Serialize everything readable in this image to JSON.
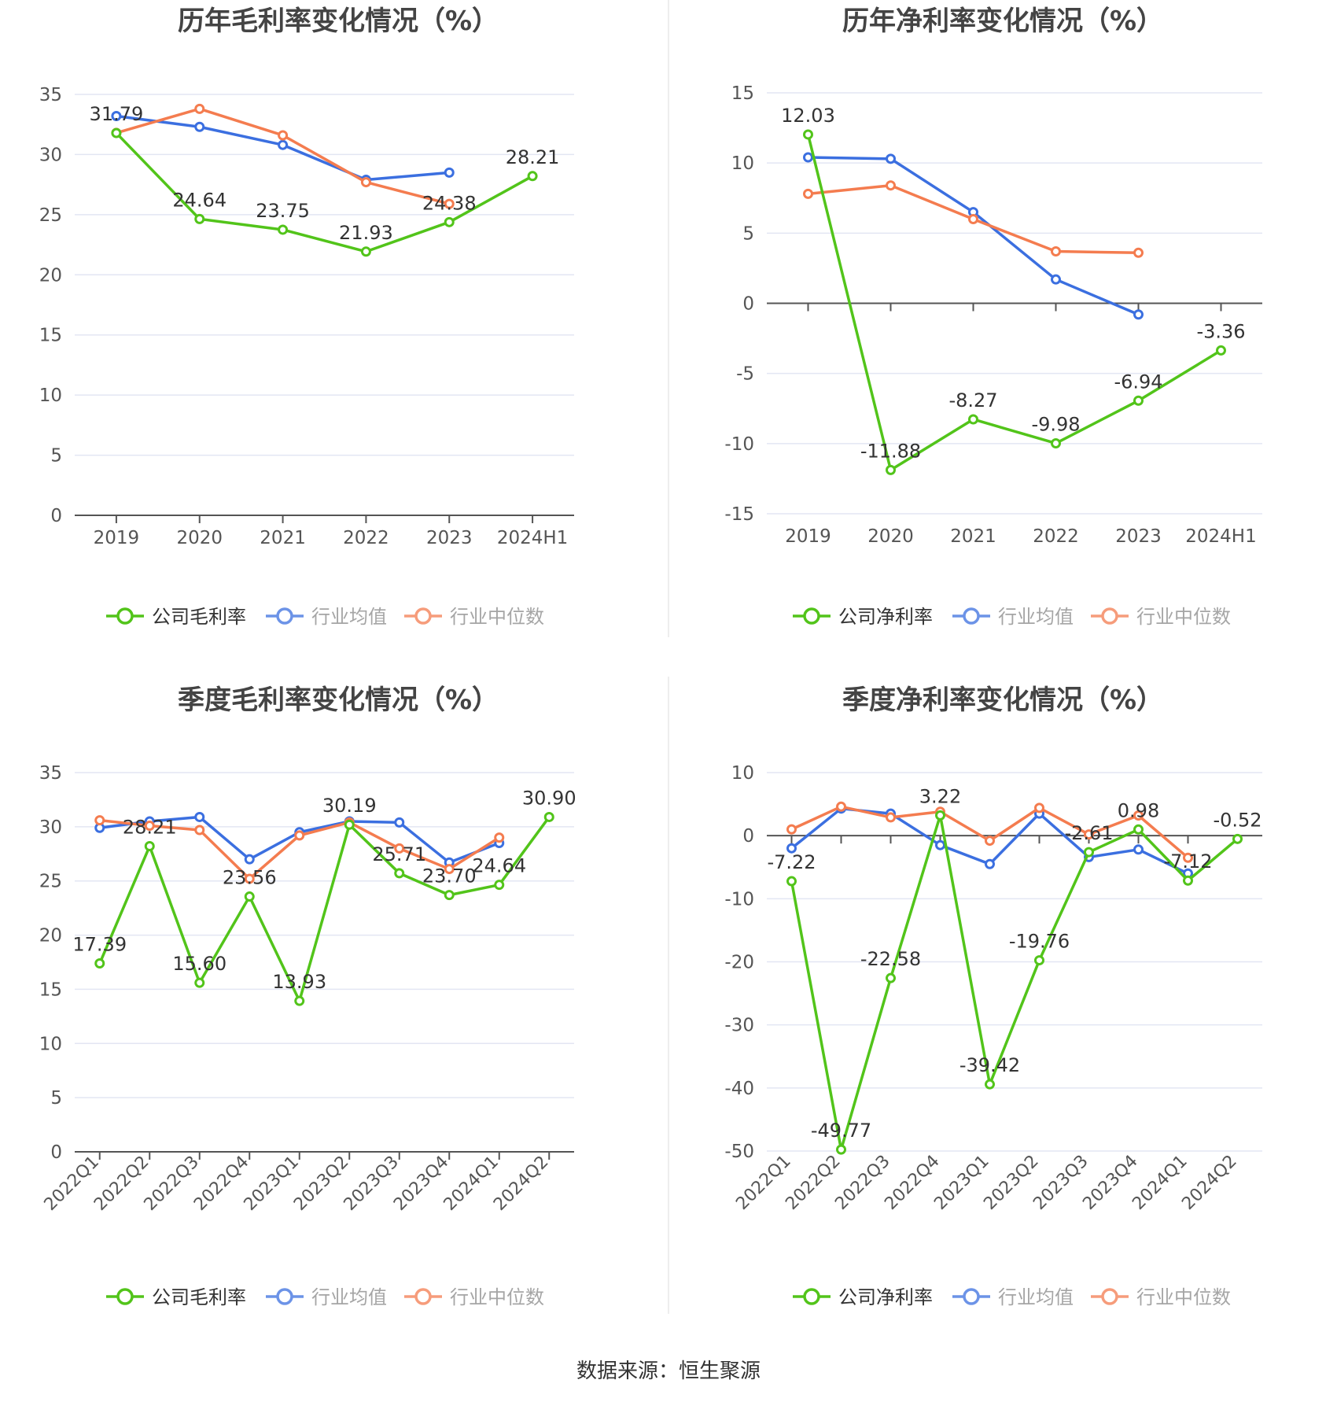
{
  "colors": {
    "company": "#52c41a",
    "avg": "#3b6fe0",
    "median": "#f47c4f",
    "grid": "#e3e6f3",
    "axis": "#555555",
    "text": "#555555",
    "title": "#444444",
    "divider": "#eeeeee"
  },
  "source_text": "数据来源：恒生聚源",
  "chart_data": [
    {
      "id": "annual-gross",
      "type": "line",
      "title": "历年毛利率变化情况（%）",
      "categories": [
        "2019",
        "2020",
        "2021",
        "2022",
        "2023",
        "2024H1"
      ],
      "ylim": [
        0,
        35
      ],
      "yticks": [
        0,
        5,
        10,
        15,
        20,
        25,
        30,
        35
      ],
      "rotate_labels": false,
      "legend": [
        "公司毛利率",
        "行业均值",
        "行业中位数"
      ],
      "series": [
        {
          "name": "公司毛利率",
          "key": "company",
          "values": [
            31.79,
            24.64,
            23.75,
            21.93,
            24.38,
            28.21
          ],
          "labels": [
            "31.79",
            "24.64",
            "23.75",
            "21.93",
            "24.38",
            "28.21"
          ]
        },
        {
          "name": "行业均值",
          "key": "avg",
          "values": [
            33.2,
            32.3,
            30.8,
            27.9,
            28.5,
            null
          ]
        },
        {
          "name": "行业中位数",
          "key": "median",
          "values": [
            31.8,
            33.8,
            31.6,
            27.7,
            25.9,
            null
          ]
        }
      ]
    },
    {
      "id": "annual-net",
      "type": "line",
      "title": "历年净利率变化情况（%）",
      "categories": [
        "2019",
        "2020",
        "2021",
        "2022",
        "2023",
        "2024H1"
      ],
      "ylim": [
        -15,
        15
      ],
      "yticks": [
        -15,
        -10,
        -5,
        0,
        5,
        10,
        15
      ],
      "rotate_labels": false,
      "legend": [
        "公司净利率",
        "行业均值",
        "行业中位数"
      ],
      "series": [
        {
          "name": "公司净利率",
          "key": "company",
          "values": [
            12.03,
            -11.88,
            -8.27,
            -9.98,
            -6.94,
            -3.36
          ],
          "labels": [
            "12.03",
            "-11.88",
            "-8.27",
            "-9.98",
            "-6.94",
            "-3.36"
          ]
        },
        {
          "name": "行业均值",
          "key": "avg",
          "values": [
            10.4,
            10.3,
            6.5,
            1.7,
            -0.8,
            null
          ]
        },
        {
          "name": "行业中位数",
          "key": "median",
          "values": [
            7.8,
            8.4,
            6.0,
            3.7,
            3.6,
            null
          ]
        }
      ]
    },
    {
      "id": "quarterly-gross",
      "type": "line",
      "title": "季度毛利率变化情况（%）",
      "categories": [
        "2022Q1",
        "2022Q2",
        "2022Q3",
        "2022Q4",
        "2023Q1",
        "2023Q2",
        "2023Q3",
        "2023Q4",
        "2024Q1",
        "2024Q2"
      ],
      "ylim": [
        0,
        35
      ],
      "yticks": [
        0,
        5,
        10,
        15,
        20,
        25,
        30,
        35
      ],
      "rotate_labels": true,
      "legend": [
        "公司毛利率",
        "行业均值",
        "行业中位数"
      ],
      "series": [
        {
          "name": "公司毛利率",
          "key": "company",
          "values": [
            17.39,
            28.21,
            15.6,
            23.56,
            13.93,
            30.19,
            25.71,
            23.7,
            24.64,
            30.9
          ],
          "labels": [
            "17.39",
            "28.21",
            "15.60",
            "23.56",
            "13.93",
            "30.19",
            "25.71",
            "23.70",
            "24.64",
            "30.90"
          ]
        },
        {
          "name": "行业均值",
          "key": "avg",
          "values": [
            29.9,
            30.5,
            30.9,
            27.0,
            29.5,
            30.5,
            30.4,
            26.7,
            28.5,
            null
          ]
        },
        {
          "name": "行业中位数",
          "key": "median",
          "values": [
            30.6,
            30.1,
            29.7,
            25.2,
            29.2,
            30.4,
            28.0,
            26.1,
            29.0,
            null
          ]
        }
      ]
    },
    {
      "id": "quarterly-net",
      "type": "line",
      "title": "季度净利率变化情况（%）",
      "categories": [
        "2022Q1",
        "2022Q2",
        "2022Q3",
        "2022Q4",
        "2023Q1",
        "2023Q2",
        "2023Q3",
        "2023Q4",
        "2024Q1",
        "2024Q2"
      ],
      "ylim": [
        -50,
        10
      ],
      "yticks": [
        -50,
        -40,
        -30,
        -20,
        -10,
        0,
        10
      ],
      "rotate_labels": true,
      "legend": [
        "公司净利率",
        "行业均值",
        "行业中位数"
      ],
      "series": [
        {
          "name": "公司净利率",
          "key": "company",
          "values": [
            -7.22,
            -49.77,
            -22.58,
            3.22,
            -39.42,
            -19.76,
            -2.61,
            0.98,
            -7.12,
            -0.52
          ],
          "labels": [
            "-7.22",
            "-49.77",
            "-22.58",
            "3.22",
            "-39.42",
            "-19.76",
            "-2.61",
            "0.98",
            "-7.12",
            "-0.52"
          ]
        },
        {
          "name": "行业均值",
          "key": "avg",
          "values": [
            -2.0,
            4.3,
            3.5,
            -1.5,
            -4.5,
            3.5,
            -3.4,
            -2.2,
            -6.0,
            null
          ]
        },
        {
          "name": "行业中位数",
          "key": "median",
          "values": [
            1.0,
            4.6,
            2.9,
            3.8,
            -0.8,
            4.4,
            0.2,
            3.2,
            -3.5,
            null
          ]
        }
      ]
    }
  ]
}
